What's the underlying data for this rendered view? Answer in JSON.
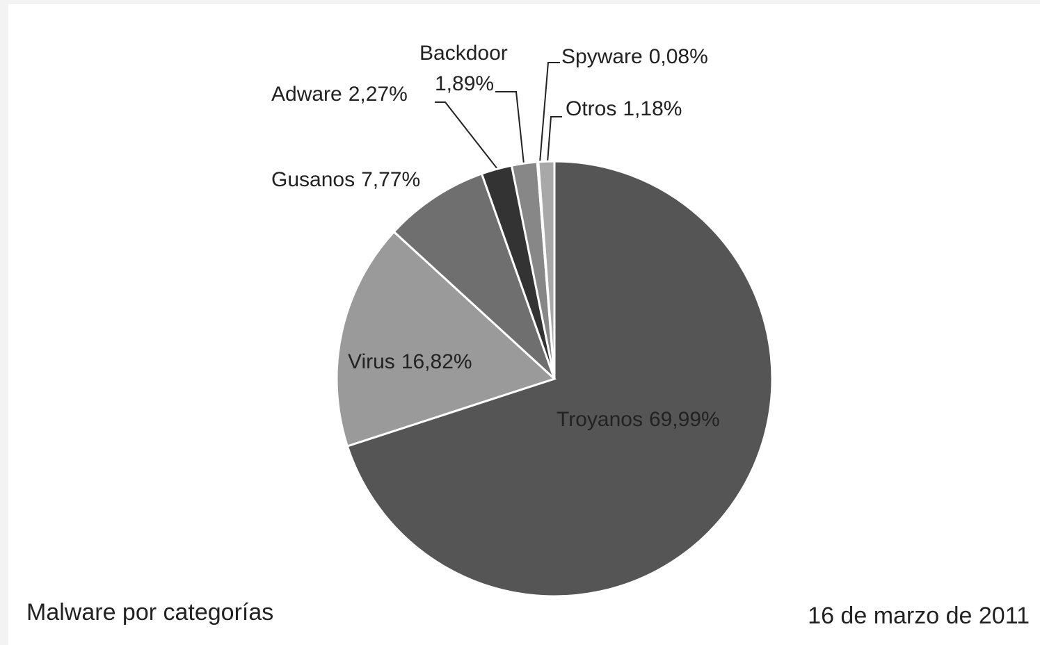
{
  "chart_data": {
    "type": "pie",
    "title": "Malware por categorías",
    "subtitle": "16 de marzo de 2011",
    "categories": [
      "Troyanos",
      "Virus",
      "Gusanos",
      "Adware",
      "Backdoor",
      "Spyware",
      "Otros"
    ],
    "values": [
      69.99,
      16.82,
      7.77,
      2.27,
      1.89,
      0.08,
      1.18
    ],
    "value_labels": [
      "69,99%",
      "16,82%",
      "7,77%",
      "2,27%",
      "1,89%",
      "0,08%",
      "1,18%"
    ],
    "colors": [
      "#555555",
      "#9a9a9a",
      "#6f6f6f",
      "#333333",
      "#878787",
      "#c4c4c4",
      "#a8a8a8"
    ]
  }
}
